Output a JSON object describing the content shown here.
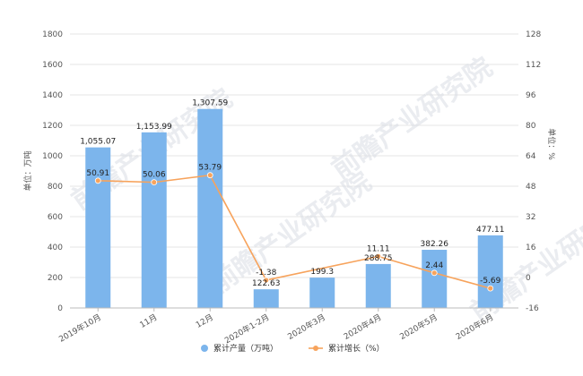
{
  "chart_data": {
    "type": "bar",
    "categories": [
      "2019年10月",
      "11月",
      "12月",
      "2020年1-2月",
      "2020年3月",
      "2020年4月",
      "2020年5月",
      "2020年6月"
    ],
    "series": [
      {
        "name": "累计产量（万吨）",
        "type": "bar",
        "axis": "left",
        "values": [
          1055.07,
          1153.99,
          1307.59,
          122.63,
          199.3,
          288.75,
          382.26,
          477.11
        ],
        "labels": [
          "1,055.07",
          "1,153.99",
          "1,307.59",
          "122.63",
          "199.3",
          "288.75",
          "382.26",
          "477.11"
        ],
        "color": "#7cb5ec"
      },
      {
        "name": "累计增长（%）",
        "type": "line",
        "axis": "right",
        "values": [
          50.91,
          50.06,
          53.79,
          -1.38,
          null,
          11.11,
          2.44,
          -5.69
        ],
        "labels": [
          "50.91",
          "50.06",
          "53.79",
          "-1.38",
          "",
          "11.11",
          "2.44",
          "-5.69"
        ],
        "color": "#f7a35c"
      }
    ],
    "y_left": {
      "label": "单位：万吨",
      "lim": [
        0,
        1800
      ],
      "ticks": [
        0,
        200,
        400,
        600,
        800,
        1000,
        1200,
        1400,
        1600,
        1800
      ]
    },
    "y_right": {
      "label": "单位：%",
      "lim": [
        -16,
        128
      ],
      "ticks": [
        -16,
        0,
        16,
        32,
        48,
        64,
        80,
        96,
        112,
        128
      ]
    },
    "grid": true,
    "legend": "bottom-center",
    "watermark": "前瞻产业研究院"
  }
}
